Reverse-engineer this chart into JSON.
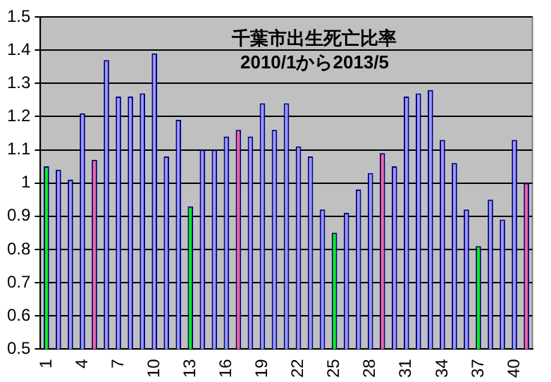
{
  "chart_data": {
    "type": "bar",
    "title": "千葉市出生死亡比率",
    "subtitle": "2010/1から2013/5",
    "categories": [
      "1",
      null,
      null,
      "4",
      null,
      null,
      "7",
      null,
      null,
      "10",
      null,
      null,
      "13",
      null,
      null,
      "16",
      null,
      null,
      "19",
      null,
      null,
      "22",
      null,
      null,
      "25",
      null,
      null,
      "28",
      null,
      null,
      "31",
      null,
      null,
      "34",
      null,
      null,
      "37",
      null,
      null,
      "40",
      null
    ],
    "values": [
      1.05,
      1.04,
      1.01,
      1.21,
      1.07,
      1.37,
      1.26,
      1.26,
      1.27,
      1.39,
      1.08,
      1.19,
      0.93,
      1.1,
      1.1,
      1.14,
      1.16,
      1.14,
      1.24,
      1.16,
      1.24,
      1.11,
      1.08,
      0.92,
      0.85,
      0.91,
      0.98,
      1.03,
      1.09,
      1.05,
      1.26,
      1.27,
      1.28,
      1.13,
      1.06,
      0.92,
      0.81,
      0.95,
      0.89,
      1.13,
      1.0
    ],
    "colors": [
      "#00ff00",
      "#9999ff",
      "#9999ff",
      "#9999ff",
      "#ff6699",
      "#9999ff",
      "#9999ff",
      "#9999ff",
      "#9999ff",
      "#9999ff",
      "#9999ff",
      "#9999ff",
      "#00ff00",
      "#9999ff",
      "#9999ff",
      "#9999ff",
      "#ff6699",
      "#9999ff",
      "#9999ff",
      "#9999ff",
      "#9999ff",
      "#9999ff",
      "#9999ff",
      "#9999ff",
      "#00ff00",
      "#9999ff",
      "#9999ff",
      "#9999ff",
      "#ff6699",
      "#9999ff",
      "#9999ff",
      "#9999ff",
      "#9999ff",
      "#9999ff",
      "#9999ff",
      "#9999ff",
      "#00ff00",
      "#9999ff",
      "#9999ff",
      "#9999ff",
      "#ff6699"
    ],
    "ylim": [
      0.5,
      1.5
    ],
    "yticks": [
      0.5,
      0.6,
      0.7,
      0.8,
      0.9,
      1,
      1.1,
      1.2,
      1.3,
      1.4,
      1.5
    ],
    "grid": "y",
    "legend": false
  }
}
